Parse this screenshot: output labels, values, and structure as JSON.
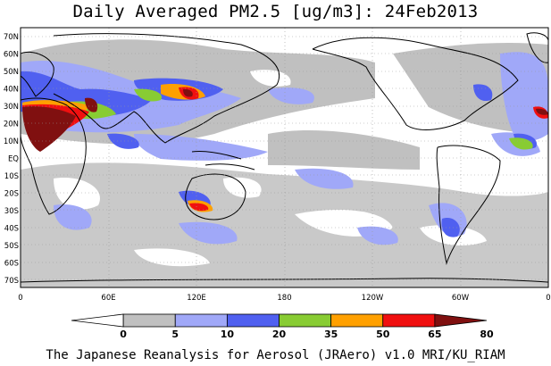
{
  "title": "Daily Averaged PM2.5 [ug/m3]: 24Feb2013",
  "credit": "The Japanese Reanalysis for Aerosol (JRAero) v1.0 MRI/KU_RIAM",
  "map": {
    "lat_labels": [
      "70N",
      "60N",
      "50N",
      "40N",
      "30N",
      "20N",
      "10N",
      "EQ",
      "10S",
      "20S",
      "30S",
      "40S",
      "50S",
      "60S",
      "70S"
    ],
    "lon_labels": [
      "0",
      "60E",
      "120E",
      "180",
      "120W",
      "60W",
      "0"
    ]
  },
  "colorbar": {
    "levels": [
      "0",
      "5",
      "10",
      "20",
      "35",
      "50",
      "65",
      "80"
    ],
    "colors": [
      "#ffffff",
      "#c0c0c0",
      "#a0a8f8",
      "#5060f0",
      "#88cc33",
      "#ffa000",
      "#f01010",
      "#801010"
    ]
  },
  "colors": {
    "land_outline": "#000000",
    "grid": "#999999"
  }
}
